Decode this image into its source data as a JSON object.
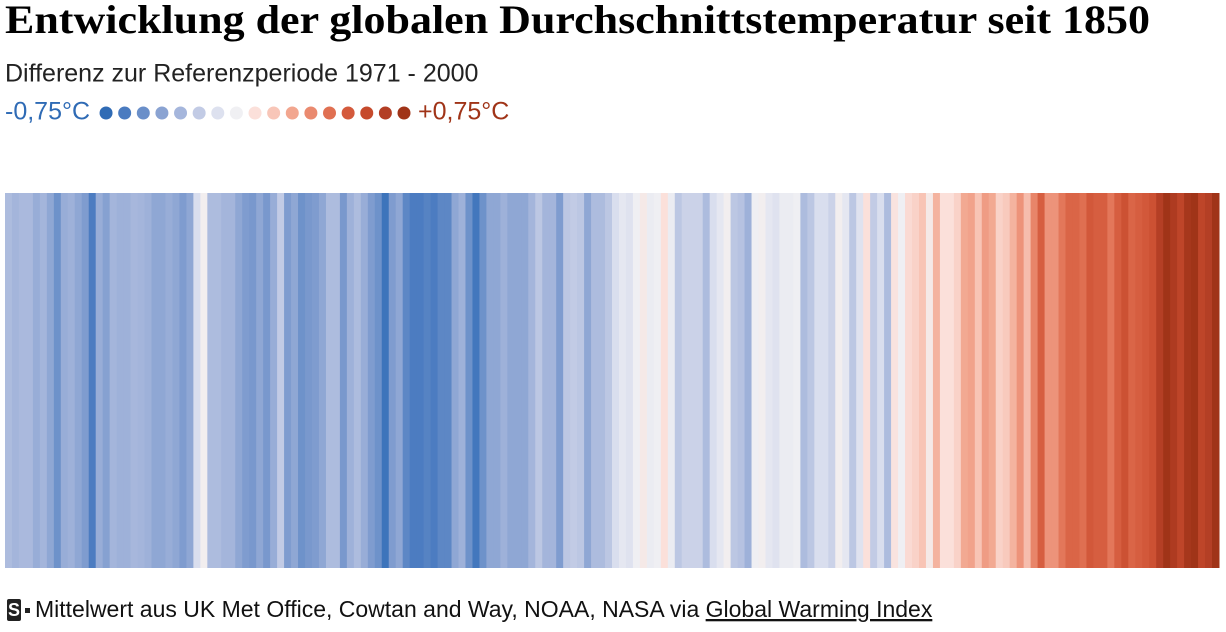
{
  "chart_data": {
    "type": "stripes",
    "title": "Entwicklung der globalen Durchschnittstemperatur seit 1850",
    "subtitle": "Differenz zur Referenzperiode 1971 - 2000",
    "scale": {
      "min": {
        "value": -0.75,
        "label": "-0,75°C"
      },
      "max": {
        "value": 0.75,
        "label": "+0,75°C"
      }
    },
    "colors": [
      "#2f6bb5",
      "#4a7bc0",
      "#6a8fc9",
      "#8aa3d2",
      "#a5b6dc",
      "#c2cbe5",
      "#dde1ef",
      "#f0f0f3",
      "#fbe0da",
      "#f8c6b8",
      "#f2a68f",
      "#ea8a6f",
      "#e07052",
      "#d45a3c",
      "#c64a2c",
      "#b33e24",
      "#a03418"
    ],
    "values": [
      -0.35,
      -0.38,
      -0.36,
      -0.36,
      -0.42,
      -0.38,
      -0.45,
      -0.55,
      -0.42,
      -0.4,
      -0.45,
      -0.5,
      -0.65,
      -0.42,
      -0.48,
      -0.38,
      -0.4,
      -0.4,
      -0.37,
      -0.38,
      -0.4,
      -0.45,
      -0.45,
      -0.42,
      -0.45,
      -0.5,
      -0.45,
      -0.2,
      -0.08,
      -0.35,
      -0.35,
      -0.38,
      -0.38,
      -0.45,
      -0.5,
      -0.52,
      -0.45,
      -0.52,
      -0.42,
      -0.28,
      -0.5,
      -0.45,
      -0.55,
      -0.52,
      -0.5,
      -0.45,
      -0.35,
      -0.35,
      -0.52,
      -0.4,
      -0.35,
      -0.42,
      -0.5,
      -0.55,
      -0.7,
      -0.5,
      -0.45,
      -0.6,
      -0.65,
      -0.65,
      -0.62,
      -0.65,
      -0.6,
      -0.6,
      -0.45,
      -0.4,
      -0.55,
      -0.68,
      -0.55,
      -0.45,
      -0.45,
      -0.4,
      -0.45,
      -0.45,
      -0.45,
      -0.38,
      -0.3,
      -0.38,
      -0.38,
      -0.5,
      -0.3,
      -0.28,
      -0.3,
      -0.45,
      -0.35,
      -0.35,
      -0.3,
      -0.2,
      -0.15,
      -0.18,
      -0.1,
      -0.05,
      -0.12,
      -0.1,
      0.0,
      -0.12,
      -0.3,
      -0.25,
      -0.25,
      -0.25,
      -0.35,
      -0.2,
      -0.15,
      -0.08,
      -0.3,
      -0.32,
      -0.4,
      -0.1,
      -0.08,
      -0.15,
      -0.18,
      -0.12,
      -0.12,
      -0.1,
      -0.35,
      -0.3,
      -0.2,
      -0.2,
      -0.25,
      -0.08,
      -0.15,
      -0.3,
      -0.18,
      0.0,
      -0.28,
      -0.2,
      -0.35,
      -0.02,
      -0.1,
      0.02,
      0.05,
      0.1,
      -0.05,
      0.15,
      0.0,
      0.0,
      0.05,
      0.18,
      0.2,
      0.1,
      0.22,
      0.18,
      0.05,
      0.08,
      0.15,
      0.25,
      0.12,
      0.3,
      0.45,
      0.25,
      0.25,
      0.35,
      0.42,
      0.42,
      0.38,
      0.48,
      0.45,
      0.45,
      0.35,
      0.45,
      0.52,
      0.42,
      0.45,
      0.48,
      0.52,
      0.65,
      0.75,
      0.68,
      0.6,
      0.72,
      0.75,
      0.6,
      0.65,
      0.85
    ],
    "source": {
      "logo": "S",
      "text": "Mittelwert aus UK Met Office, Cowtan and Way, NOAA, NASA via",
      "link": "Global Warming Index"
    }
  }
}
